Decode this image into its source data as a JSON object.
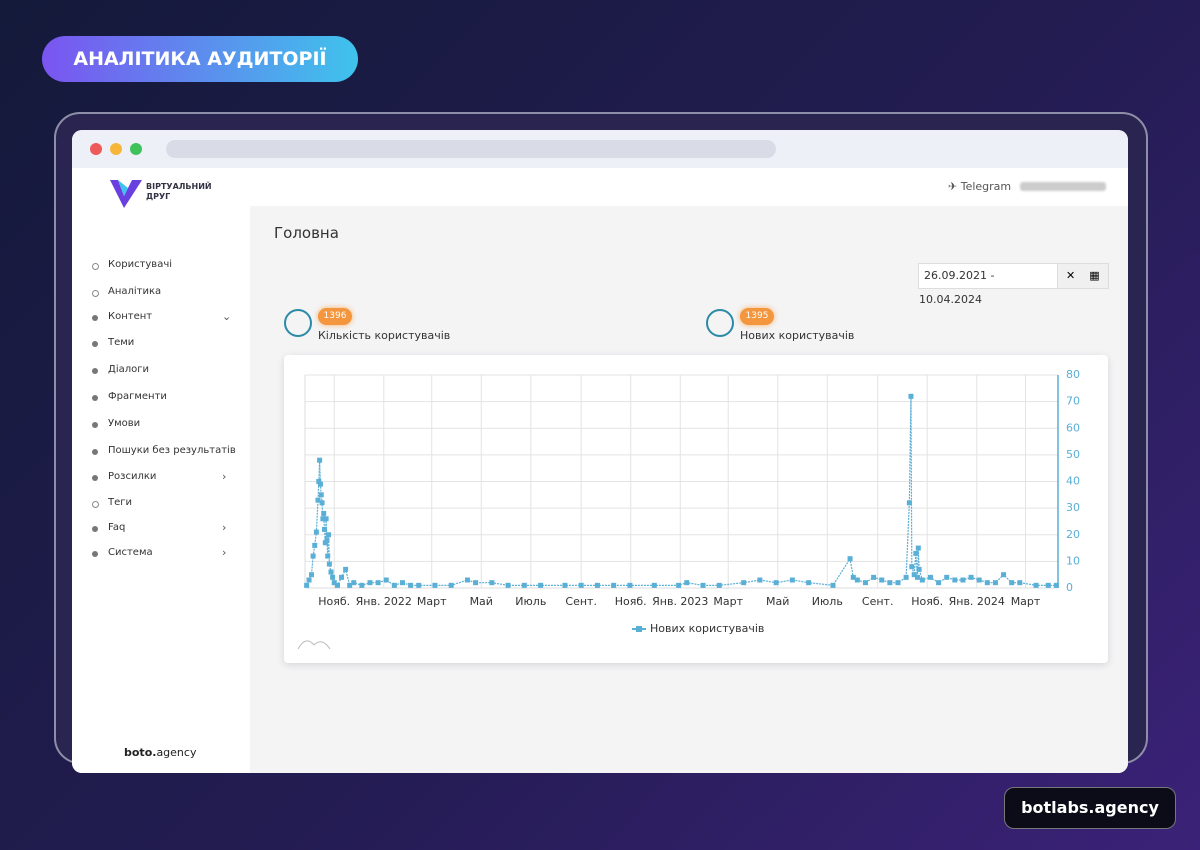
{
  "badge": "АНАЛІТИКА АУДИТОРІЇ",
  "logo": {
    "line1": "ВІРТУАЛЬНИЙ",
    "line2": "ДРУГ"
  },
  "header": {
    "channel": "Telegram"
  },
  "menu": [
    "Користувачі",
    "Аналітика",
    "Контент",
    "Теми",
    "Діалоги",
    "Фрагменти",
    "Умови",
    "Пошуки без результатів",
    "Розсилки",
    "Теги",
    "Faq",
    "Система"
  ],
  "page_title": "Головна",
  "date_range": "26.09.2021 - 10.04.2024",
  "stats": [
    {
      "value": 1396,
      "label": "Кількість користувачів"
    },
    {
      "value": 1395,
      "label": "Нових користувачів"
    }
  ],
  "chart_data": {
    "type": "line",
    "grid": true,
    "marker": "square",
    "x": [
      2,
      5,
      8,
      10,
      12,
      14,
      16,
      17,
      18,
      19,
      20,
      21,
      22,
      23,
      24,
      25,
      26,
      27,
      28,
      29,
      30,
      32,
      34,
      36,
      40,
      45,
      50,
      55,
      60,
      70,
      80,
      90,
      100,
      110,
      120,
      130,
      140,
      160,
      180,
      200,
      210,
      230,
      250,
      270,
      290,
      320,
      340,
      360,
      380,
      400,
      430,
      460,
      470,
      490,
      510,
      540,
      560,
      580,
      600,
      620,
      650,
      671,
      675,
      680,
      690,
      700,
      710,
      720,
      730,
      740,
      744,
      746,
      747,
      750,
      752,
      754,
      755,
      756,
      760,
      770,
      780,
      790,
      800,
      810,
      820,
      830,
      840,
      850,
      860,
      870,
      880,
      900,
      915,
      925
    ],
    "series": [
      {
        "name": "Нових користувачів",
        "color": "#5aafd6",
        "values": [
          1,
          3,
          5,
          12,
          16,
          21,
          33,
          40,
          48,
          39,
          35,
          32,
          26,
          28,
          22,
          17,
          26,
          18,
          12,
          20,
          9,
          6,
          4,
          2,
          1,
          4,
          7,
          1,
          2,
          1,
          2,
          2,
          3,
          1,
          2,
          1,
          1,
          1,
          1,
          3,
          2,
          2,
          1,
          1,
          1,
          1,
          1,
          1,
          1,
          1,
          1,
          1,
          2,
          1,
          1,
          2,
          3,
          2,
          3,
          2,
          1,
          11,
          4,
          3,
          2,
          4,
          3,
          2,
          2,
          4,
          32,
          72,
          8,
          5,
          13,
          4,
          15,
          7,
          3,
          4,
          2,
          4,
          3,
          3,
          4,
          3,
          2,
          2,
          5,
          2,
          2,
          1,
          1,
          1
        ]
      }
    ],
    "xlim": [
      0,
      927
    ],
    "xticks": [
      {
        "value": 36,
        "label": "Нояб."
      },
      {
        "value": 97,
        "label": "Янв. 2022"
      },
      {
        "value": 156,
        "label": "Март"
      },
      {
        "value": 217,
        "label": "Май"
      },
      {
        "value": 278,
        "label": "Июль"
      },
      {
        "value": 340,
        "label": "Сент."
      },
      {
        "value": 401,
        "label": "Нояб."
      },
      {
        "value": 462,
        "label": "Янв. 2023"
      },
      {
        "value": 521,
        "label": "Март"
      },
      {
        "value": 582,
        "label": "Май"
      },
      {
        "value": 643,
        "label": "Июль"
      },
      {
        "value": 705,
        "label": "Сент."
      },
      {
        "value": 766,
        "label": "Нояб."
      },
      {
        "value": 827,
        "label": "Янв. 2024"
      },
      {
        "value": 887,
        "label": "Март"
      }
    ],
    "ylim": [
      0,
      80
    ],
    "yticks": [
      0,
      10,
      20,
      30,
      40,
      50,
      60,
      70,
      80
    ]
  },
  "footer_brand": {
    "bold": "boto.",
    "light": "agency"
  },
  "site": "botlabs.agency"
}
